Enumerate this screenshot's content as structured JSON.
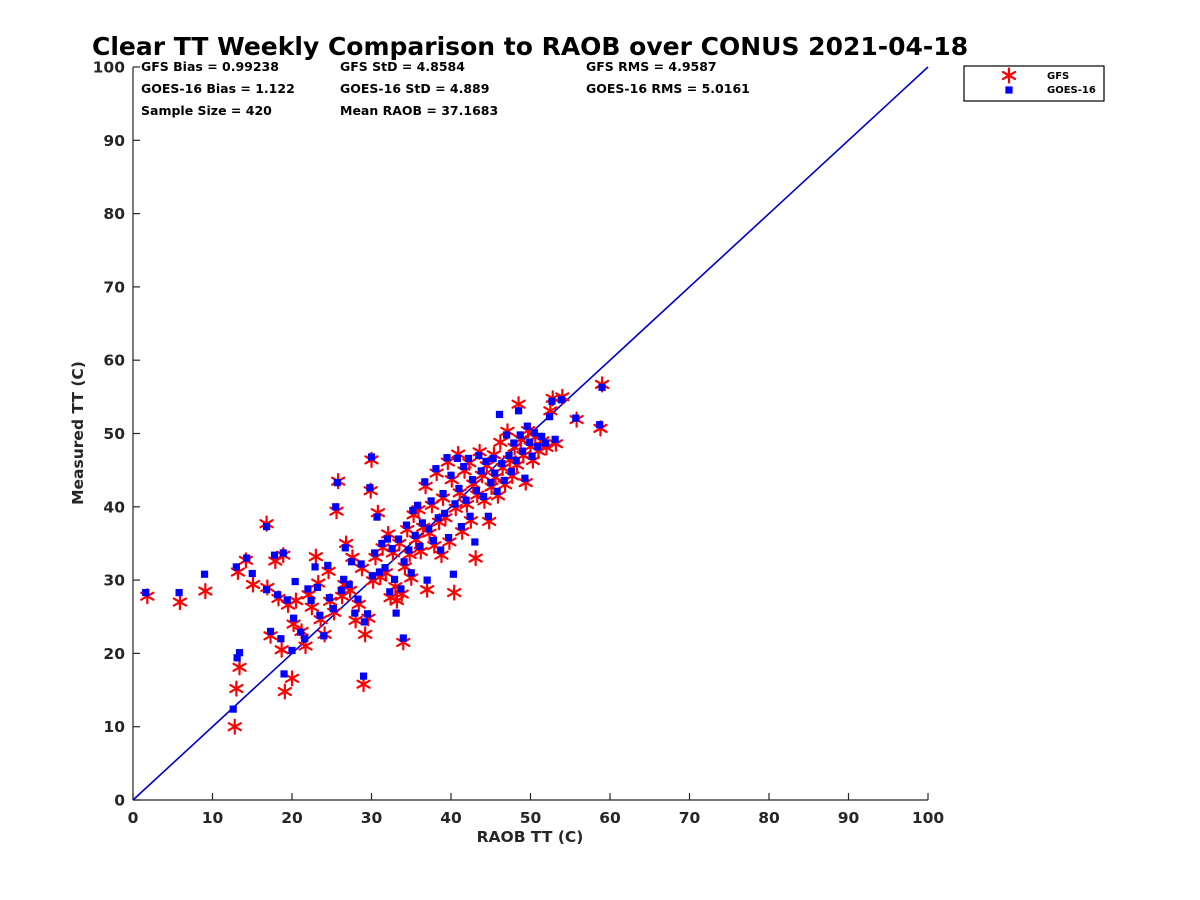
{
  "chart_data": {
    "type": "scatter",
    "title": "Clear TT Weekly Comparison to RAOB over CONUS 2021-04-18",
    "xlabel": "RAOB TT (C)",
    "ylabel": "Measured TT (C)",
    "xlim": [
      0,
      100
    ],
    "ylim": [
      0,
      100
    ],
    "xticks": [
      "0",
      "10",
      "20",
      "30",
      "40",
      "50",
      "60",
      "70",
      "80",
      "90",
      "100"
    ],
    "yticks": [
      "0",
      "10",
      "20",
      "30",
      "40",
      "50",
      "60",
      "70",
      "80",
      "90",
      "100"
    ],
    "reference_line": {
      "name": "one-to-one",
      "x": [
        0,
        100
      ],
      "y": [
        0,
        100
      ],
      "color": "#0000cc"
    },
    "legend_position": "top-right outside",
    "stats": {
      "gfs_bias": "GFS Bias = 0.99238",
      "gfs_std": "GFS StD = 4.8584",
      "gfs_rms": "GFS RMS = 4.9587",
      "goes_bias": "GOES-16 Bias = 1.122",
      "goes_std": "GOES-16 StD = 4.889",
      "goes_rms": "GOES-16 RMS = 5.0161",
      "sample_size": "Sample Size = 420",
      "mean_raob": "Mean RAOB = 37.1683"
    },
    "series": [
      {
        "name": "GFS",
        "marker": "asterisk",
        "color": "#ff0000",
        "points": [
          [
            1.8,
            27.8
          ],
          [
            5.9,
            27.0
          ],
          [
            9.1,
            28.5
          ],
          [
            12.8,
            10.0
          ],
          [
            13.0,
            15.2
          ],
          [
            13.4,
            18.1
          ],
          [
            13.2,
            31.1
          ],
          [
            14.2,
            32.7
          ],
          [
            15.1,
            29.4
          ],
          [
            16.8,
            37.7
          ],
          [
            16.9,
            29.0
          ],
          [
            17.3,
            22.4
          ],
          [
            17.9,
            32.6
          ],
          [
            18.3,
            27.5
          ],
          [
            18.7,
            20.5
          ],
          [
            18.9,
            33.4
          ],
          [
            19.1,
            14.8
          ],
          [
            19.5,
            26.6
          ],
          [
            20.0,
            16.6
          ],
          [
            20.2,
            24.0
          ],
          [
            20.5,
            27.2
          ],
          [
            21.2,
            23.0
          ],
          [
            21.7,
            21.0
          ],
          [
            22.1,
            28.0
          ],
          [
            22.5,
            26.3
          ],
          [
            23.0,
            33.2
          ],
          [
            23.3,
            29.6
          ],
          [
            23.6,
            24.6
          ],
          [
            24.1,
            22.6
          ],
          [
            24.6,
            31.2
          ],
          [
            24.8,
            27.1
          ],
          [
            25.3,
            25.6
          ],
          [
            25.6,
            39.4
          ],
          [
            25.8,
            43.5
          ],
          [
            26.3,
            27.8
          ],
          [
            26.6,
            29.4
          ],
          [
            26.8,
            35.0
          ],
          [
            27.3,
            28.6
          ],
          [
            27.6,
            33.1
          ],
          [
            28.0,
            24.5
          ],
          [
            28.4,
            26.7
          ],
          [
            28.8,
            31.6
          ],
          [
            29.0,
            15.8
          ],
          [
            29.2,
            22.6
          ],
          [
            29.6,
            24.8
          ],
          [
            29.9,
            42.2
          ],
          [
            30.0,
            46.4
          ],
          [
            30.2,
            29.9
          ],
          [
            30.5,
            33.1
          ],
          [
            30.8,
            39.2
          ],
          [
            31.1,
            30.4
          ],
          [
            31.4,
            34.4
          ],
          [
            31.8,
            31.0
          ],
          [
            32.1,
            36.3
          ],
          [
            32.4,
            27.6
          ],
          [
            32.7,
            33.7
          ],
          [
            33.0,
            29.1
          ],
          [
            33.2,
            27.2
          ],
          [
            33.5,
            35.0
          ],
          [
            33.8,
            28.1
          ],
          [
            34.0,
            21.5
          ],
          [
            34.2,
            31.8
          ],
          [
            34.5,
            36.9
          ],
          [
            34.8,
            33.5
          ],
          [
            35.0,
            30.3
          ],
          [
            35.3,
            38.9
          ],
          [
            35.6,
            35.5
          ],
          [
            35.9,
            39.6
          ],
          [
            36.2,
            33.9
          ],
          [
            36.5,
            37.2
          ],
          [
            36.8,
            42.8
          ],
          [
            37.0,
            28.7
          ],
          [
            37.3,
            36.4
          ],
          [
            37.6,
            40.2
          ],
          [
            37.9,
            34.7
          ],
          [
            38.2,
            44.6
          ],
          [
            38.5,
            37.9
          ],
          [
            38.8,
            33.4
          ],
          [
            39.0,
            41.2
          ],
          [
            39.3,
            38.5
          ],
          [
            39.6,
            46.1
          ],
          [
            39.8,
            35.2
          ],
          [
            40.1,
            43.7
          ],
          [
            40.4,
            28.3
          ],
          [
            40.6,
            39.8
          ],
          [
            40.9,
            47.2
          ],
          [
            41.1,
            41.9
          ],
          [
            41.4,
            36.6
          ],
          [
            41.7,
            44.9
          ],
          [
            42.0,
            40.3
          ],
          [
            42.3,
            46.0
          ],
          [
            42.5,
            38.1
          ],
          [
            42.8,
            43.1
          ],
          [
            43.1,
            33.0
          ],
          [
            43.3,
            41.6
          ],
          [
            43.6,
            47.5
          ],
          [
            43.9,
            44.3
          ],
          [
            44.2,
            40.8
          ],
          [
            44.5,
            45.6
          ],
          [
            44.8,
            38.0
          ],
          [
            45.1,
            42.7
          ],
          [
            45.4,
            47.1
          ],
          [
            45.6,
            44.0
          ],
          [
            45.9,
            41.5
          ],
          [
            46.2,
            48.8
          ],
          [
            46.5,
            45.3
          ],
          [
            46.8,
            43.0
          ],
          [
            47.1,
            50.3
          ],
          [
            47.4,
            46.4
          ],
          [
            47.7,
            44.2
          ],
          [
            48.0,
            48.1
          ],
          [
            48.3,
            45.7
          ],
          [
            48.5,
            54.0
          ],
          [
            48.8,
            49.2
          ],
          [
            49.1,
            47.0
          ],
          [
            49.4,
            43.3
          ],
          [
            49.7,
            50.4
          ],
          [
            50.0,
            48.2
          ],
          [
            50.3,
            46.3
          ],
          [
            50.6,
            49.5
          ],
          [
            51.0,
            47.6
          ],
          [
            51.5,
            49.0
          ],
          [
            52.0,
            48.1
          ],
          [
            52.5,
            53.1
          ],
          [
            52.8,
            54.8
          ],
          [
            53.2,
            48.6
          ],
          [
            54.0,
            55.0
          ],
          [
            55.8,
            51.9
          ],
          [
            58.8,
            50.7
          ],
          [
            59.0,
            56.7
          ]
        ]
      },
      {
        "name": "GOES-16",
        "marker": "square",
        "color": "#0000ff",
        "points": [
          [
            1.6,
            28.3
          ],
          [
            5.8,
            28.3
          ],
          [
            9.0,
            30.8
          ],
          [
            12.6,
            12.4
          ],
          [
            13.1,
            19.4
          ],
          [
            13.4,
            20.1
          ],
          [
            13.0,
            31.8
          ],
          [
            14.3,
            33.0
          ],
          [
            15.0,
            30.9
          ],
          [
            16.8,
            37.3
          ],
          [
            16.8,
            28.7
          ],
          [
            17.3,
            23.0
          ],
          [
            17.8,
            33.4
          ],
          [
            18.2,
            28.0
          ],
          [
            18.6,
            22.0
          ],
          [
            18.9,
            33.7
          ],
          [
            19.0,
            17.2
          ],
          [
            19.4,
            27.3
          ],
          [
            20.0,
            20.4
          ],
          [
            20.2,
            24.8
          ],
          [
            20.4,
            29.8
          ],
          [
            21.1,
            22.9
          ],
          [
            21.6,
            22.0
          ],
          [
            22.0,
            28.8
          ],
          [
            22.4,
            27.2
          ],
          [
            22.9,
            31.8
          ],
          [
            23.2,
            29.0
          ],
          [
            23.5,
            25.2
          ],
          [
            24.0,
            22.4
          ],
          [
            24.5,
            32.0
          ],
          [
            24.7,
            27.6
          ],
          [
            25.2,
            26.1
          ],
          [
            25.5,
            40.0
          ],
          [
            25.7,
            43.3
          ],
          [
            26.2,
            28.6
          ],
          [
            26.5,
            30.1
          ],
          [
            26.7,
            34.4
          ],
          [
            27.2,
            29.4
          ],
          [
            27.5,
            32.5
          ],
          [
            27.9,
            25.5
          ],
          [
            28.3,
            27.4
          ],
          [
            28.7,
            32.2
          ],
          [
            29.0,
            16.9
          ],
          [
            29.1,
            24.3
          ],
          [
            29.5,
            25.4
          ],
          [
            29.8,
            42.6
          ],
          [
            30.0,
            46.8
          ],
          [
            30.1,
            30.6
          ],
          [
            30.4,
            33.7
          ],
          [
            30.7,
            38.6
          ],
          [
            31.0,
            31.1
          ],
          [
            31.3,
            35.0
          ],
          [
            31.7,
            31.7
          ],
          [
            32.0,
            35.6
          ],
          [
            32.3,
            28.4
          ],
          [
            32.6,
            34.3
          ],
          [
            32.9,
            30.1
          ],
          [
            33.1,
            25.5
          ],
          [
            33.4,
            35.6
          ],
          [
            33.7,
            28.8
          ],
          [
            34.0,
            22.1
          ],
          [
            34.1,
            32.5
          ],
          [
            34.4,
            37.5
          ],
          [
            34.7,
            34.1
          ],
          [
            35.0,
            31.0
          ],
          [
            35.2,
            39.5
          ],
          [
            35.5,
            36.1
          ],
          [
            35.8,
            40.2
          ],
          [
            36.1,
            34.6
          ],
          [
            36.4,
            37.8
          ],
          [
            36.7,
            43.4
          ],
          [
            37.0,
            30.0
          ],
          [
            37.2,
            37.0
          ],
          [
            37.5,
            40.8
          ],
          [
            37.8,
            35.4
          ],
          [
            38.1,
            45.2
          ],
          [
            38.4,
            38.5
          ],
          [
            38.7,
            34.1
          ],
          [
            39.0,
            41.8
          ],
          [
            39.2,
            39.1
          ],
          [
            39.5,
            46.7
          ],
          [
            39.7,
            35.8
          ],
          [
            40.0,
            44.3
          ],
          [
            40.3,
            30.8
          ],
          [
            40.5,
            40.4
          ],
          [
            40.8,
            46.6
          ],
          [
            41.0,
            42.5
          ],
          [
            41.3,
            37.3
          ],
          [
            41.6,
            45.5
          ],
          [
            41.9,
            40.9
          ],
          [
            42.2,
            46.6
          ],
          [
            42.4,
            38.7
          ],
          [
            42.7,
            43.7
          ],
          [
            43.0,
            35.2
          ],
          [
            43.2,
            42.2
          ],
          [
            43.5,
            47.0
          ],
          [
            43.8,
            44.9
          ],
          [
            44.1,
            41.4
          ],
          [
            44.4,
            46.2
          ],
          [
            44.7,
            38.7
          ],
          [
            45.0,
            43.3
          ],
          [
            45.3,
            46.6
          ],
          [
            45.5,
            44.6
          ],
          [
            45.8,
            42.1
          ],
          [
            46.1,
            52.6
          ],
          [
            46.4,
            45.9
          ],
          [
            46.7,
            43.6
          ],
          [
            47.0,
            49.8
          ],
          [
            47.3,
            47.0
          ],
          [
            47.6,
            44.8
          ],
          [
            47.9,
            48.7
          ],
          [
            48.2,
            46.3
          ],
          [
            48.5,
            53.1
          ],
          [
            48.7,
            49.8
          ],
          [
            49.0,
            47.6
          ],
          [
            49.3,
            43.9
          ],
          [
            49.6,
            51.0
          ],
          [
            49.9,
            48.8
          ],
          [
            50.2,
            46.9
          ],
          [
            50.5,
            50.1
          ],
          [
            50.9,
            48.2
          ],
          [
            51.4,
            49.6
          ],
          [
            51.9,
            48.7
          ],
          [
            52.4,
            52.3
          ],
          [
            52.7,
            54.4
          ],
          [
            53.1,
            49.2
          ],
          [
            53.9,
            54.6
          ],
          [
            55.7,
            52.1
          ],
          [
            58.7,
            51.2
          ],
          [
            59.0,
            56.3
          ]
        ]
      }
    ]
  }
}
